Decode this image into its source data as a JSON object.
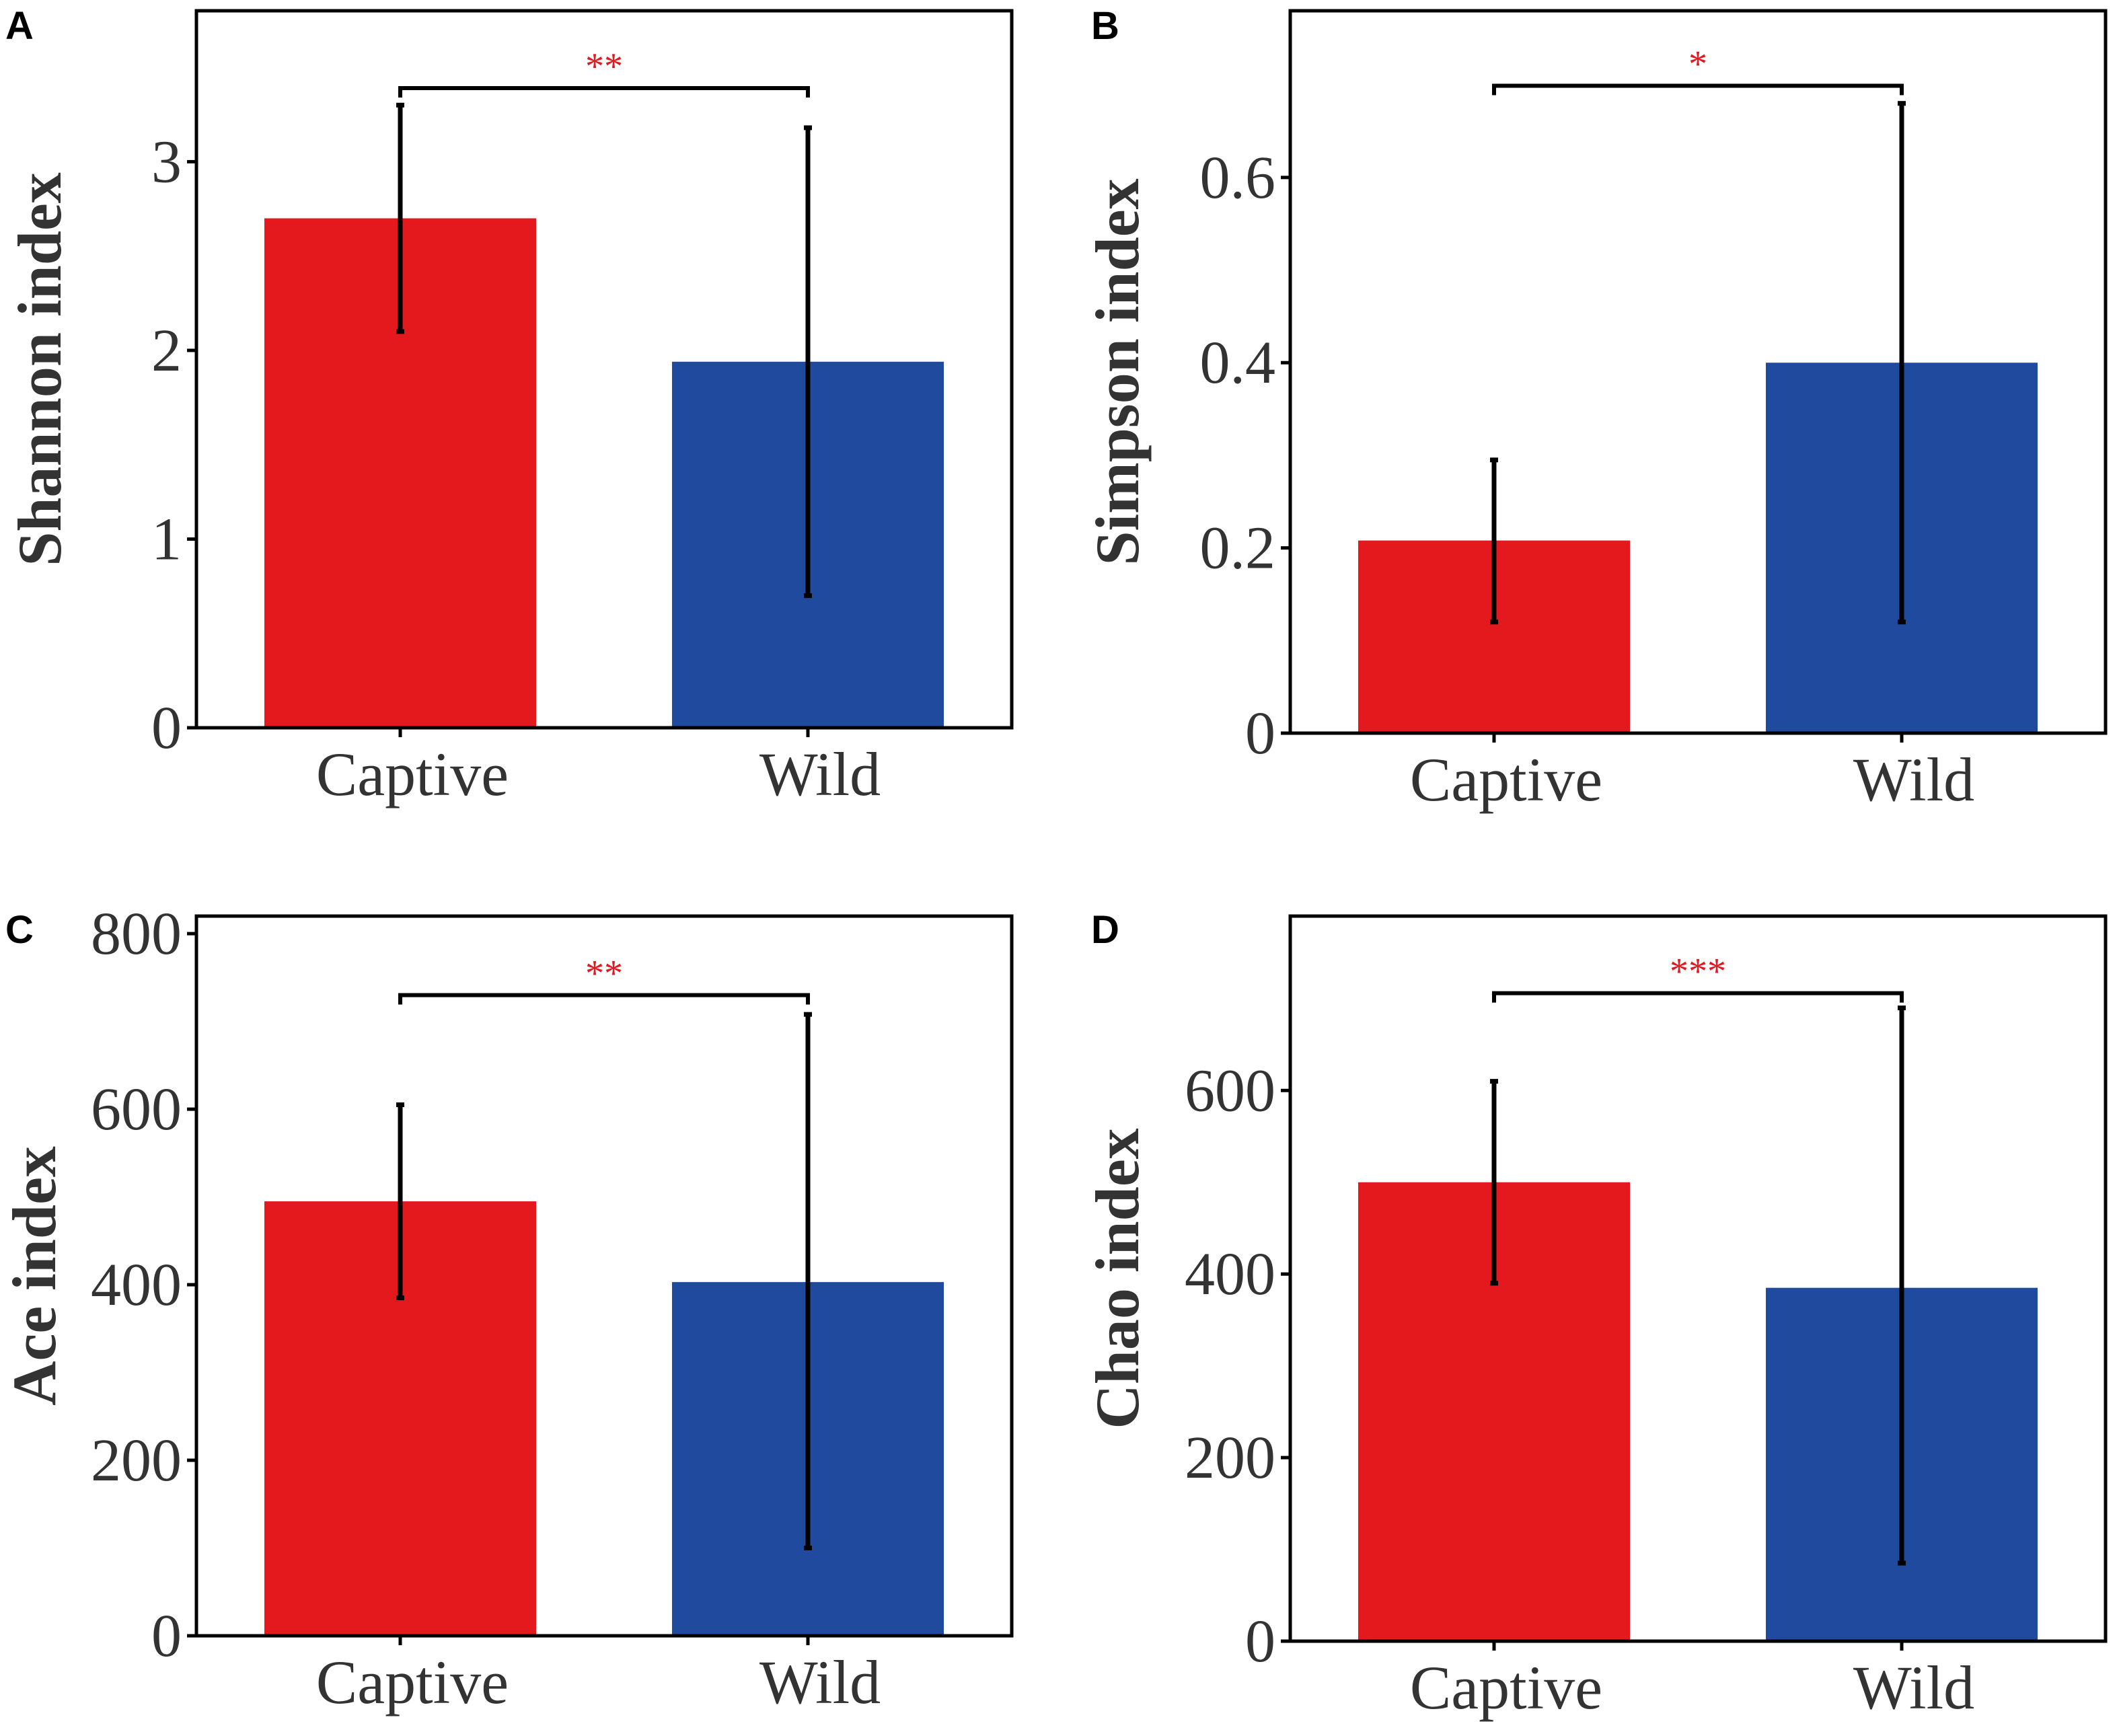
{
  "colors": {
    "captive": "#e3191e",
    "wild": "#1f4a9e",
    "significance": "#e01a22"
  },
  "chart_data": [
    {
      "panel": "A",
      "type": "bar",
      "categories": [
        "Captive",
        "Wild"
      ],
      "values": [
        2.7,
        1.94
      ],
      "error_low": [
        2.1,
        0.7
      ],
      "error_high": [
        3.3,
        3.18
      ],
      "ylabel": "Shannon index",
      "ylim": [
        0,
        3.8
      ],
      "yticks": [
        0,
        1,
        2,
        3
      ],
      "ytick_labels": [
        "0",
        "1",
        "2",
        "3"
      ],
      "significance": "**",
      "bracket_value": 3.39
    },
    {
      "panel": "B",
      "type": "bar",
      "categories": [
        "Captive",
        "Wild"
      ],
      "values": [
        0.208,
        0.4
      ],
      "error_low": [
        0.12,
        0.12
      ],
      "error_high": [
        0.295,
        0.68
      ],
      "ylabel": "Simpson index",
      "ylim": [
        0,
        0.78
      ],
      "yticks": [
        0,
        0.2,
        0.4,
        0.6
      ],
      "ytick_labels": [
        "0",
        "0.2",
        "0.4",
        "0.6"
      ],
      "significance": "*",
      "bracket_value": 0.699
    },
    {
      "panel": "C",
      "type": "bar",
      "categories": [
        "Captive",
        "Wild"
      ],
      "values": [
        495,
        403
      ],
      "error_low": [
        385,
        100
      ],
      "error_high": [
        605,
        708
      ],
      "ylabel": "Ace index",
      "ylim": [
        0,
        820
      ],
      "yticks": [
        0,
        200,
        400,
        600,
        800
      ],
      "ytick_labels": [
        "0",
        "200",
        "400",
        "600",
        "800"
      ],
      "significance": "**",
      "bracket_value": 730
    },
    {
      "panel": "D",
      "type": "bar",
      "categories": [
        "Captive",
        "Wild"
      ],
      "values": [
        500,
        385
      ],
      "error_low": [
        390,
        85
      ],
      "error_high": [
        610,
        690
      ],
      "ylabel": "Chao index",
      "ylim": [
        0,
        790
      ],
      "yticks": [
        0,
        200,
        400,
        600
      ],
      "ytick_labels": [
        "0",
        "200",
        "400",
        "600"
      ],
      "significance": "***",
      "bracket_value": 706
    }
  ]
}
